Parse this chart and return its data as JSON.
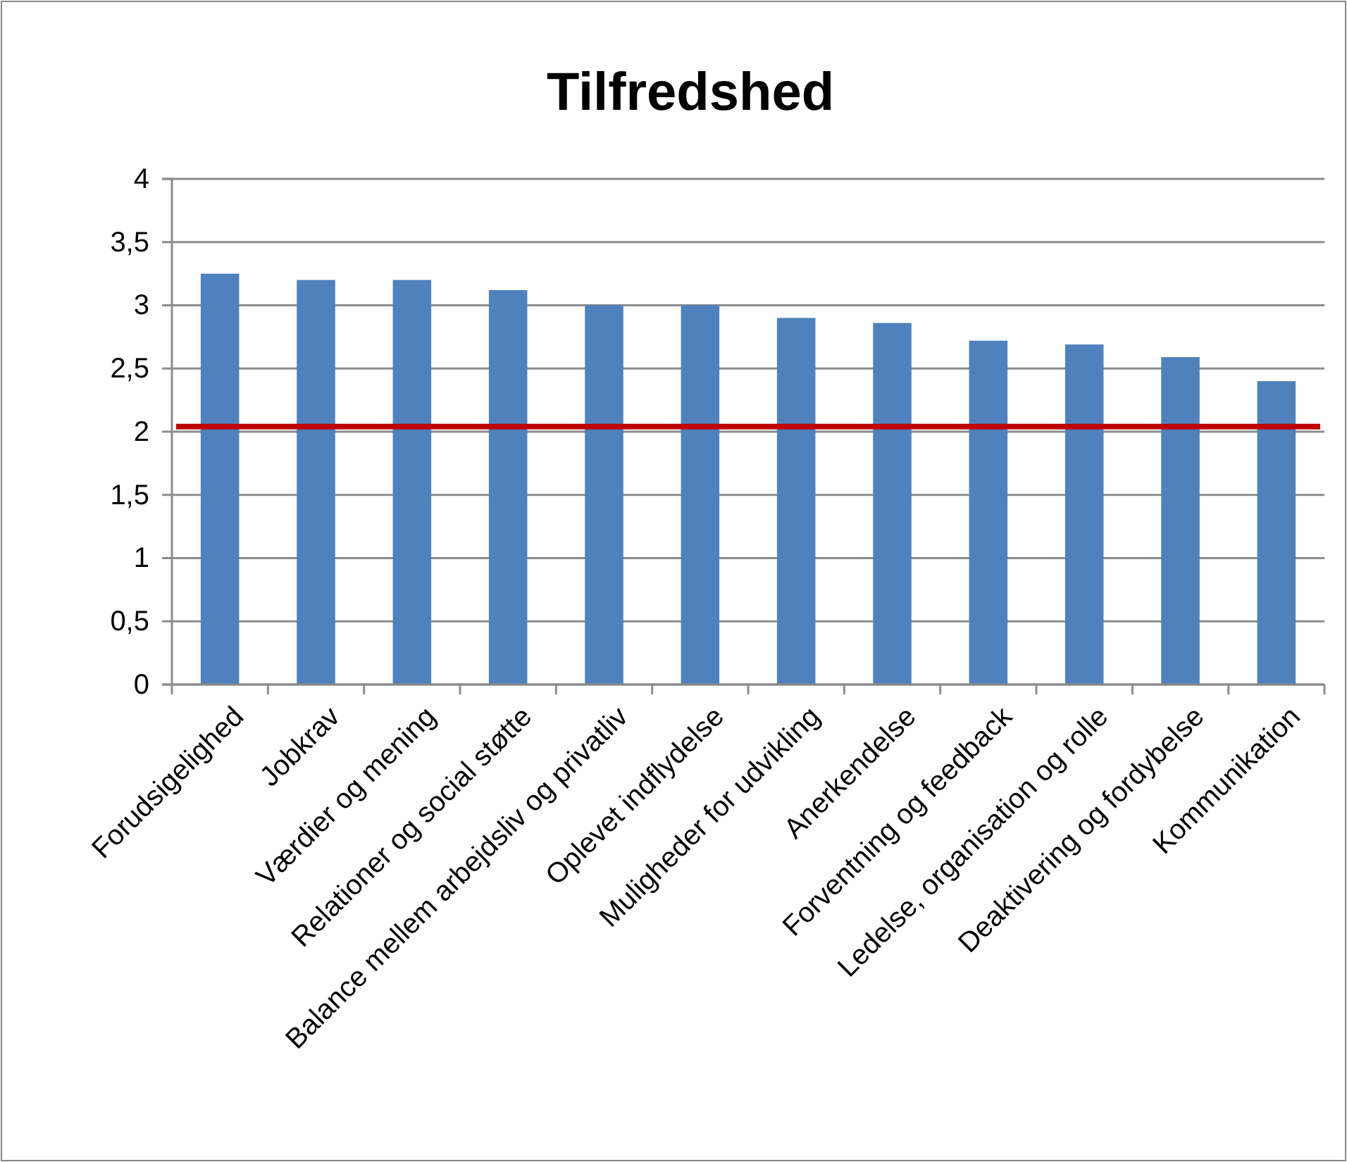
{
  "chart_data": {
    "type": "bar",
    "title": "Tilfredshed",
    "categories": [
      "Forudsigelighed",
      "Jobkrav",
      "Værdier og mening",
      "Relationer og social støtte",
      "Balance mellem arbejdsliv og privatliv",
      "Oplevet indflydelse",
      "Muligheder for udvikling",
      "Anerkendelse",
      "Forventning og feedback",
      "Ledelse, organisation og rolle",
      "Deaktivering og fordybelse",
      "Kommunikation"
    ],
    "values": [
      3.25,
      3.2,
      3.2,
      3.12,
      3.0,
      3.0,
      2.9,
      2.86,
      2.72,
      2.69,
      2.59,
      2.4
    ],
    "color": "#4f81bd",
    "ylim": [
      0,
      4
    ],
    "yticks": [
      0,
      {
        "value": 0.5,
        "label": "0,5"
      },
      1,
      {
        "value": 1.5,
        "label": "1,5"
      },
      2,
      {
        "value": 2.5,
        "label": "2,5"
      },
      3,
      {
        "value": 3.5,
        "label": "3,5"
      },
      4
    ],
    "grid": "y",
    "ref_lines": [
      {
        "axis": "y",
        "value": 2.04,
        "color": "#c00000"
      }
    ]
  }
}
